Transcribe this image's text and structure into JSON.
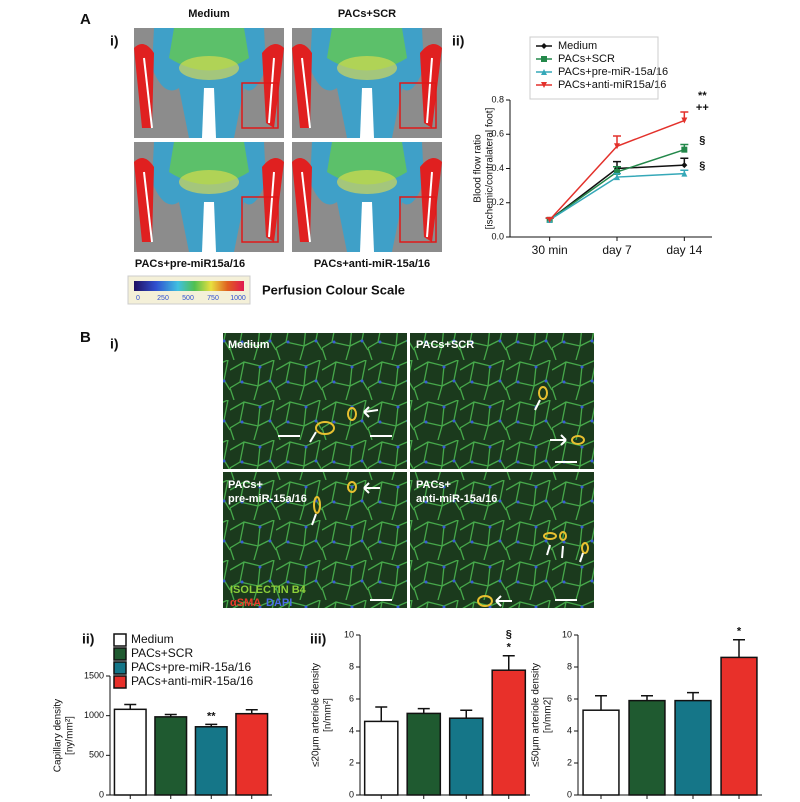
{
  "figure": {
    "panel_a": "A",
    "panel_a_i": "i)",
    "panel_a_ii": "ii)",
    "panel_b": "B",
    "panel_b_i": "i)",
    "panel_b_ii": "ii)",
    "panel_b_iii": "iii)"
  },
  "doppler": {
    "labels": [
      "Medium",
      "PACs+SCR",
      "PACs+pre-miR15a/16",
      "PACs+anti-miR-15a/16"
    ],
    "scale_title": "Perfusion Colour Scale",
    "scale_ticks": [
      0,
      250,
      500,
      750,
      1000
    ]
  },
  "microscopy": {
    "labels": [
      [
        "Medium"
      ],
      [
        "PACs+SCR"
      ],
      [
        "PACs+",
        "pre-miR-15a/16"
      ],
      [
        "PACs+",
        "anti-miR-15a/16"
      ]
    ],
    "stain_green": "ISOLECTIN B4",
    "stain_red": "αSMA",
    "stain_blue": "DAPI"
  },
  "chart_data": [
    {
      "type": "line",
      "ylabel": [
        "Blood flow ratio",
        "[ischemic/contralateral foot]"
      ],
      "categories": [
        "30 min",
        "day 7",
        "day 14"
      ],
      "ylim": [
        0,
        0.8
      ],
      "yticks": [
        {
          "value": 0,
          "label": "0.0"
        },
        0.2,
        0.4,
        0.6,
        0.8
      ],
      "series": [
        {
          "name": "Medium",
          "color": "#111111",
          "marker": "diamond",
          "values": [
            0.1,
            0.4,
            0.42
          ],
          "errors": [
            0.01,
            0.04,
            0.04
          ]
        },
        {
          "name": "PACs+SCR",
          "color": "#23884a",
          "marker": "square",
          "values": [
            0.1,
            0.38,
            0.51
          ],
          "errors": [
            0.01,
            0.03,
            0.03
          ],
          "annotations": [
            "§"
          ]
        },
        {
          "name": "PACs+pre-miR-15a/16",
          "color": "#35a8b8",
          "marker": "triangle",
          "values": [
            0.1,
            0.35,
            0.37
          ],
          "errors": [
            0.01,
            0.02,
            0.02
          ],
          "annotations": [
            "§"
          ]
        },
        {
          "name": "PACs+anti-miR15a/16",
          "color": "#e3312b",
          "marker": "triangle-down",
          "values": [
            0.1,
            0.53,
            0.68
          ],
          "errors": [
            0.01,
            0.06,
            0.05
          ],
          "annotations": [
            "**",
            "++"
          ]
        }
      ]
    },
    {
      "type": "bar",
      "ylabel": [
        "Capillary density",
        "[ny/mm²]"
      ],
      "ylim": [
        0,
        1500
      ],
      "yticks": [
        0,
        500,
        1000,
        1500
      ],
      "series": [
        {
          "name": "Medium",
          "color": "#ffffff",
          "values": [
            1080
          ],
          "errors": [
            60
          ]
        },
        {
          "name": "PACs+SCR",
          "color": "#1f5a30",
          "values": [
            985
          ],
          "errors": [
            30
          ]
        },
        {
          "name": "PACs+pre-miR-15a/16",
          "color": "#157688",
          "values": [
            860
          ],
          "errors": [
            30
          ],
          "annotations": [
            "**"
          ]
        },
        {
          "name": "PACs+anti-miR-15a/16",
          "color": "#e8302a",
          "values": [
            1025
          ],
          "errors": [
            50
          ]
        }
      ]
    },
    {
      "type": "bar",
      "ylabel": [
        "≤20μm arteriole density",
        "[n/mm²]"
      ],
      "ylim": [
        0,
        10
      ],
      "yticks": [
        0,
        2,
        4,
        6,
        8,
        10
      ],
      "series": [
        {
          "color": "#ffffff",
          "values": [
            4.6
          ],
          "errors": [
            0.9
          ]
        },
        {
          "color": "#1f5a30",
          "values": [
            5.1
          ],
          "errors": [
            0.3
          ]
        },
        {
          "color": "#157688",
          "values": [
            4.8
          ],
          "errors": [
            0.5
          ]
        },
        {
          "color": "#e8302a",
          "values": [
            7.8
          ],
          "errors": [
            0.9
          ],
          "annotations": [
            "§",
            "*"
          ]
        }
      ]
    },
    {
      "type": "bar",
      "ylabel": [
        "≤50μm arteriole density",
        "[n/mm2]"
      ],
      "ylim": [
        0,
        10
      ],
      "yticks": [
        0,
        2,
        4,
        6,
        8,
        10
      ],
      "series": [
        {
          "color": "#ffffff",
          "values": [
            5.3
          ],
          "errors": [
            0.9
          ]
        },
        {
          "color": "#1f5a30",
          "values": [
            5.9
          ],
          "errors": [
            0.3
          ]
        },
        {
          "color": "#157688",
          "values": [
            5.9
          ],
          "errors": [
            0.5
          ]
        },
        {
          "color": "#e8302a",
          "values": [
            8.6
          ],
          "errors": [
            1.1
          ],
          "annotations": [
            "*"
          ]
        }
      ]
    }
  ]
}
